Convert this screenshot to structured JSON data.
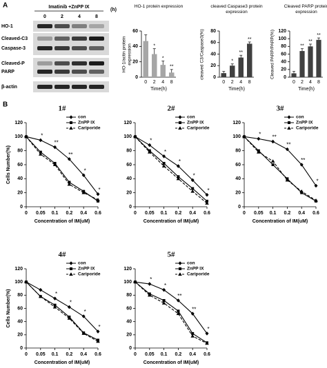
{
  "panel_labels": [
    "A",
    "B"
  ],
  "blot": {
    "header": "Imatinib +ZnPP IX",
    "unit": "(h)",
    "lanes": [
      "0",
      "2",
      "4",
      "8"
    ],
    "rows": [
      "HO-1",
      "Cleaved-C3",
      "Caspase-3",
      "Cleaved-P",
      "PARP",
      "β-actin"
    ]
  },
  "chart_data": [
    {
      "type": "bar",
      "title": "HO-1 protein expression",
      "y_label": "HO-1/actin protein expression",
      "x_label": "Time(h)",
      "categories": [
        "0",
        "2",
        "4",
        "8"
      ],
      "values": [
        47,
        30,
        16,
        6
      ],
      "errors": [
        8,
        7,
        5,
        4
      ],
      "significance": [
        null,
        "*",
        "*",
        "**"
      ],
      "color": "#a6a6a6",
      "ylim": [
        0,
        60
      ],
      "yticks": [
        0,
        20,
        40,
        60
      ]
    },
    {
      "type": "bar",
      "title": "cleaved Caspase3 protein expression",
      "y_label": "cleaved C3/Caspase3(%)",
      "x_label": "Time(h)",
      "categories": [
        "0",
        "2",
        "4",
        "8"
      ],
      "values": [
        7,
        20,
        34,
        58
      ],
      "errors": [
        3,
        3,
        4,
        3
      ],
      "significance": [
        null,
        "*",
        "**",
        "**"
      ],
      "color": "#404040",
      "ylim": [
        0,
        80
      ],
      "yticks": [
        0,
        20,
        40,
        60,
        80
      ]
    },
    {
      "type": "bar",
      "title": "Cleaved PARP protein expression",
      "y_label": "Cleaved PARP/PARP(%)",
      "x_label": "Time(h)",
      "categories": [
        "0",
        "2",
        "4",
        "8"
      ],
      "values": [
        10,
        68,
        80,
        97
      ],
      "errors": [
        5,
        6,
        6,
        5
      ],
      "significance": [
        null,
        "**",
        "**",
        "**"
      ],
      "color": "#404040",
      "ylim": [
        0,
        120
      ],
      "yticks": [
        0,
        20,
        40,
        60,
        80,
        100,
        120
      ]
    },
    {
      "type": "line",
      "title": "1#",
      "y_label": "Cells Number(%)",
      "x_label": "Concentration of IM(uM)",
      "categories": [
        "0",
        "0.05",
        "0.1",
        "0.2",
        "0.4",
        "0.6"
      ],
      "ylim": [
        0,
        120
      ],
      "yticks": [
        0,
        20,
        40,
        60,
        80,
        100,
        120
      ],
      "legend": "upper right",
      "significance": [
        null,
        "*",
        "**",
        "**",
        "*",
        "*"
      ],
      "series": [
        {
          "name": "con",
          "color": "#000000",
          "marker": "diamond",
          "dash": "solid",
          "values": [
            100,
            95,
            85,
            68,
            45,
            18
          ]
        },
        {
          "name": "ZnPP IX",
          "color": "#000000",
          "marker": "square",
          "dash": "solid",
          "values": [
            100,
            78,
            62,
            35,
            22,
            8
          ]
        },
        {
          "name": "Cariporide",
          "color": "#000000",
          "marker": "triangle",
          "dash": "dashed",
          "values": [
            100,
            75,
            60,
            32,
            20,
            10
          ]
        }
      ]
    },
    {
      "type": "line",
      "title": "2#",
      "x_label": "Concentration of IM(uM)",
      "categories": [
        "0",
        "0.05",
        "0.1",
        "0.2",
        "0.4",
        "0.6"
      ],
      "ylim": [
        0,
        120
      ],
      "yticks": [
        0,
        20,
        40,
        60,
        80,
        100,
        120
      ],
      "legend": "upper right",
      "significance": [
        null,
        "*",
        "*",
        "*",
        "*",
        "*"
      ],
      "series": [
        {
          "name": "con",
          "color": "#000000",
          "marker": "diamond",
          "dash": "solid",
          "values": [
            100,
            88,
            72,
            58,
            38,
            17
          ]
        },
        {
          "name": "ZnPP IX",
          "color": "#000000",
          "marker": "square",
          "dash": "solid",
          "values": [
            100,
            80,
            62,
            43,
            26,
            8
          ]
        },
        {
          "name": "Cariporide",
          "color": "#000000",
          "marker": "triangle",
          "dash": "dashed",
          "values": [
            100,
            78,
            58,
            40,
            22,
            5
          ]
        }
      ]
    },
    {
      "type": "line",
      "title": "3#",
      "x_label": "Concentration of IM(uM)",
      "categories": [
        "0",
        "0.05",
        "0.1",
        "0.2",
        "0.4",
        "0.6"
      ],
      "ylim": [
        0,
        120
      ],
      "yticks": [
        0,
        20,
        40,
        60,
        80,
        100,
        120
      ],
      "legend": "upper right",
      "significance": [
        null,
        "*",
        "**",
        "**",
        "**",
        "*"
      ],
      "series": [
        {
          "name": "con",
          "color": "#000000",
          "marker": "diamond",
          "dash": "solid",
          "values": [
            100,
            97,
            93,
            82,
            60,
            30
          ]
        },
        {
          "name": "ZnPP IX",
          "color": "#000000",
          "marker": "square",
          "dash": "solid",
          "values": [
            100,
            80,
            60,
            40,
            20,
            8
          ]
        },
        {
          "name": "Cariporide",
          "color": "#000000",
          "marker": "triangle",
          "dash": "dashed",
          "values": [
            100,
            78,
            65,
            38,
            22,
            9
          ]
        }
      ]
    },
    {
      "type": "line",
      "title": "4#",
      "y_label": "Cells Number(%)",
      "x_label": "Concentration of IM(uM)",
      "categories": [
        "0",
        "0.05",
        "0.1",
        "0.2",
        "0.4",
        "0.6"
      ],
      "ylim": [
        0,
        120
      ],
      "yticks": [
        0,
        20,
        40,
        60,
        80,
        100,
        120
      ],
      "legend": "upper right",
      "significance": [
        null,
        null,
        "*",
        "*",
        "*",
        "*"
      ],
      "series": [
        {
          "name": "con",
          "color": "#000000",
          "marker": "diamond",
          "dash": "solid",
          "values": [
            100,
            88,
            75,
            62,
            48,
            25
          ]
        },
        {
          "name": "ZnPP IX",
          "color": "#000000",
          "marker": "square",
          "dash": "solid",
          "values": [
            100,
            78,
            65,
            47,
            23,
            12
          ]
        },
        {
          "name": "Cariporide",
          "color": "#000000",
          "marker": "triangle",
          "dash": "dashed",
          "values": [
            100,
            78,
            62,
            45,
            22,
            10
          ]
        }
      ]
    },
    {
      "type": "line",
      "title": "5#",
      "x_label": "Concentration of IM(uM)",
      "categories": [
        "0",
        "0.05",
        "0.1",
        "0.2",
        "0.4",
        "0.6"
      ],
      "ylim": [
        0,
        120
      ],
      "yticks": [
        0,
        20,
        40,
        60,
        80,
        100,
        120
      ],
      "legend": "upper right",
      "significance": [
        null,
        "*",
        "*",
        "**",
        "**",
        "*"
      ],
      "series": [
        {
          "name": "con",
          "color": "#000000",
          "marker": "diamond",
          "dash": "solid",
          "values": [
            100,
            97,
            88,
            72,
            52,
            22
          ]
        },
        {
          "name": "ZnPP IX",
          "color": "#000000",
          "marker": "square",
          "dash": "solid",
          "values": [
            100,
            82,
            72,
            56,
            22,
            8
          ]
        },
        {
          "name": "Cariporide",
          "color": "#000000",
          "marker": "triangle",
          "dash": "dashed",
          "values": [
            100,
            80,
            68,
            52,
            18,
            7
          ]
        }
      ]
    }
  ]
}
